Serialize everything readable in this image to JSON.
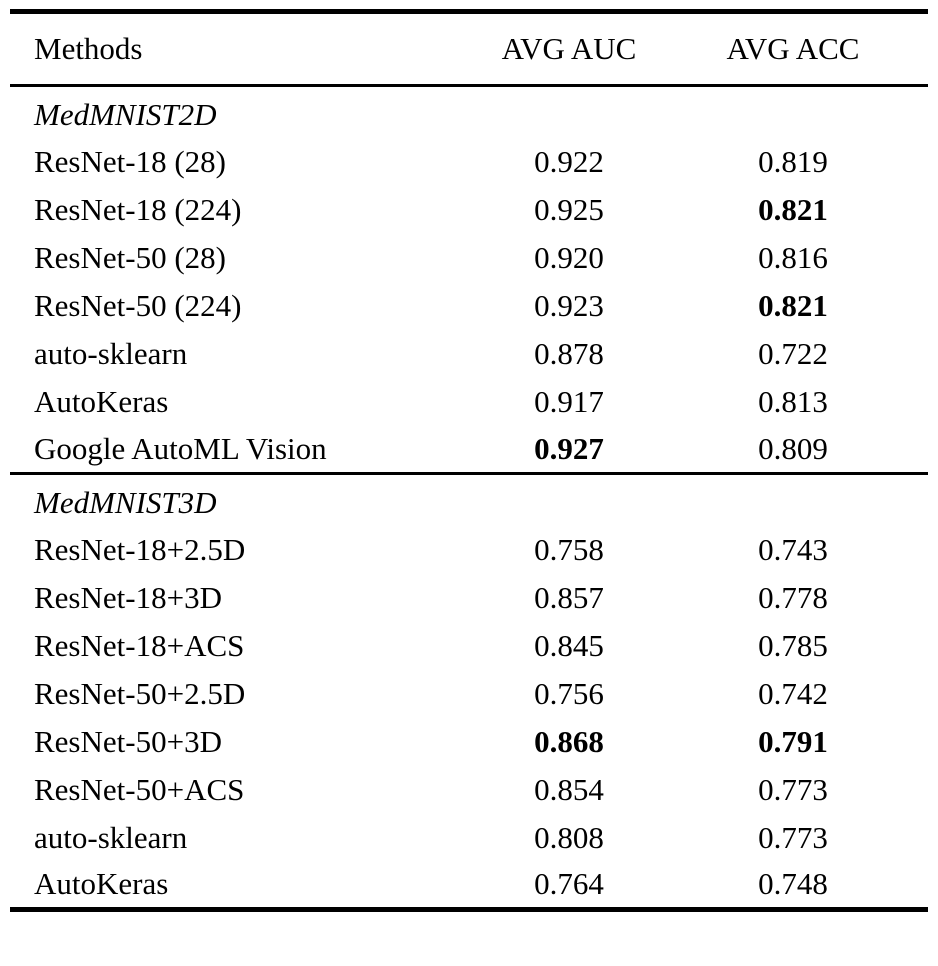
{
  "table": {
    "columns": [
      "Methods",
      "AVG AUC",
      "AVG ACC"
    ],
    "text_color": "#000000",
    "background_color": "#ffffff",
    "sections": [
      {
        "title": "MedMNIST2D",
        "rows": [
          {
            "method": "ResNet-18 (28)",
            "values": [
              {
                "text": "0.922",
                "bold": false
              },
              {
                "text": "0.819",
                "bold": false
              }
            ]
          },
          {
            "method": "ResNet-18 (224)",
            "values": [
              {
                "text": "0.925",
                "bold": false
              },
              {
                "text": "0.821",
                "bold": true
              }
            ]
          },
          {
            "method": "ResNet-50 (28)",
            "values": [
              {
                "text": "0.920",
                "bold": false
              },
              {
                "text": "0.816",
                "bold": false
              }
            ]
          },
          {
            "method": "ResNet-50 (224)",
            "values": [
              {
                "text": "0.923",
                "bold": false
              },
              {
                "text": "0.821",
                "bold": true
              }
            ]
          },
          {
            "method": "auto-sklearn",
            "values": [
              {
                "text": "0.878",
                "bold": false
              },
              {
                "text": "0.722",
                "bold": false
              }
            ]
          },
          {
            "method": "AutoKeras",
            "values": [
              {
                "text": "0.917",
                "bold": false
              },
              {
                "text": "0.813",
                "bold": false
              }
            ]
          },
          {
            "method": "Google AutoML Vision",
            "values": [
              {
                "text": "0.927",
                "bold": true
              },
              {
                "text": "0.809",
                "bold": false
              }
            ]
          }
        ]
      },
      {
        "title": "MedMNIST3D",
        "rows": [
          {
            "method": "ResNet-18+2.5D",
            "values": [
              {
                "text": "0.758",
                "bold": false
              },
              {
                "text": "0.743",
                "bold": false
              }
            ]
          },
          {
            "method": "ResNet-18+3D",
            "values": [
              {
                "text": "0.857",
                "bold": false
              },
              {
                "text": "0.778",
                "bold": false
              }
            ]
          },
          {
            "method": "ResNet-18+ACS",
            "values": [
              {
                "text": "0.845",
                "bold": false
              },
              {
                "text": "0.785",
                "bold": false
              }
            ]
          },
          {
            "method": "ResNet-50+2.5D",
            "values": [
              {
                "text": "0.756",
                "bold": false
              },
              {
                "text": "0.742",
                "bold": false
              }
            ]
          },
          {
            "method": "ResNet-50+3D",
            "values": [
              {
                "text": "0.868",
                "bold": true
              },
              {
                "text": "0.791",
                "bold": true
              }
            ]
          },
          {
            "method": "ResNet-50+ACS",
            "values": [
              {
                "text": "0.854",
                "bold": false
              },
              {
                "text": "0.773",
                "bold": false
              }
            ]
          },
          {
            "method": "auto-sklearn",
            "values": [
              {
                "text": "0.808",
                "bold": false
              },
              {
                "text": "0.773",
                "bold": false
              }
            ]
          },
          {
            "method": "AutoKeras",
            "values": [
              {
                "text": "0.764",
                "bold": false
              },
              {
                "text": "0.748",
                "bold": false
              }
            ]
          }
        ]
      }
    ]
  }
}
